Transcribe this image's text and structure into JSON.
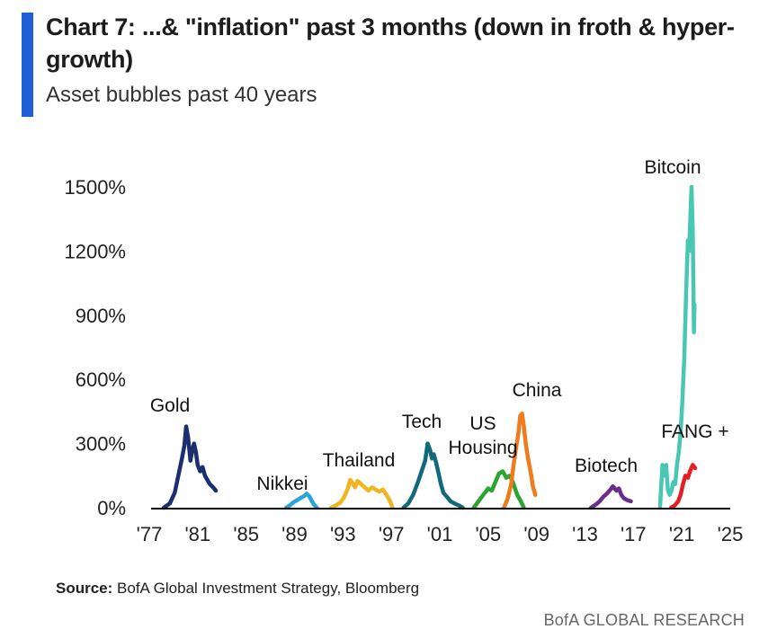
{
  "header": {
    "title": "Chart 7: ...& \"inflation\" past 3 months (down in froth & hyper-growth)",
    "subtitle": "Asset bubbles past 40 years"
  },
  "footer": {
    "source_label": "Source:",
    "source_text": "BofA Global Investment Strategy, Bloomberg",
    "brand": "BofA GLOBAL RESEARCH"
  },
  "chart_data": {
    "type": "line",
    "title": "Chart 7: ...& \"inflation\" past 3 months (down in froth & hyper-growth)",
    "subtitle": "Asset bubbles past 40 years",
    "xlabel": "",
    "ylabel": "",
    "xlim": [
      1977,
      2025
    ],
    "ylim": [
      0,
      1500
    ],
    "x_ticks": [
      {
        "value": 1977,
        "label": "'77"
      },
      {
        "value": 1981,
        "label": "'81"
      },
      {
        "value": 1985,
        "label": "'85"
      },
      {
        "value": 1989,
        "label": "'89"
      },
      {
        "value": 1993,
        "label": "'93"
      },
      {
        "value": 1997,
        "label": "'97"
      },
      {
        "value": 2001,
        "label": "'01"
      },
      {
        "value": 2005,
        "label": "'05"
      },
      {
        "value": 2009,
        "label": "'09"
      },
      {
        "value": 2013,
        "label": "'13"
      },
      {
        "value": 2017,
        "label": "'17"
      },
      {
        "value": 2021,
        "label": "'21"
      },
      {
        "value": 2025,
        "label": "'25"
      }
    ],
    "y_ticks": [
      {
        "value": 0,
        "label": "0%"
      },
      {
        "value": 300,
        "label": "300%"
      },
      {
        "value": 600,
        "label": "600%"
      },
      {
        "value": 900,
        "label": "900%"
      },
      {
        "value": 1200,
        "label": "1200%"
      },
      {
        "value": 1500,
        "label": "1500%"
      }
    ],
    "grid": false,
    "legend": "none",
    "series": [
      {
        "name": "Gold",
        "color": "#1b2f6e",
        "label_lines": [
          "Gold"
        ],
        "x": [
          1978.2,
          1978.7,
          1979.1,
          1979.4,
          1979.7,
          1979.9,
          1980.05,
          1980.2,
          1980.4,
          1980.55,
          1980.7,
          1980.85,
          1981.0,
          1981.2,
          1981.4,
          1981.6,
          1981.8,
          1982.0,
          1982.2,
          1982.5
        ],
        "y": [
          0,
          20,
          70,
          150,
          230,
          290,
          380,
          330,
          220,
          270,
          300,
          260,
          200,
          170,
          190,
          150,
          130,
          110,
          100,
          80
        ]
      },
      {
        "name": "Nikkei",
        "color": "#29a3d9",
        "label_lines": [
          "Nikkei"
        ],
        "x": [
          1988.3,
          1988.6,
          1988.9,
          1989.2,
          1989.5,
          1989.8,
          1990.0,
          1990.2,
          1990.4,
          1990.6,
          1990.85
        ],
        "y": [
          0,
          10,
          25,
          35,
          45,
          55,
          65,
          55,
          35,
          15,
          0
        ]
      },
      {
        "name": "Thailand",
        "color": "#f0b51f",
        "label_lines": [
          "Thailand"
        ],
        "x": [
          1992.0,
          1992.4,
          1992.8,
          1993.1,
          1993.4,
          1993.6,
          1993.8,
          1994.0,
          1994.2,
          1994.5,
          1994.8,
          1995.1,
          1995.4,
          1995.7,
          1996.0,
          1996.3,
          1996.6,
          1996.9,
          1997.1
        ],
        "y": [
          0,
          10,
          25,
          50,
          90,
          130,
          115,
          95,
          125,
          110,
          95,
          80,
          95,
          85,
          75,
          85,
          60,
          30,
          0
        ]
      },
      {
        "name": "Tech",
        "color": "#13697a",
        "label_lines": [
          "Tech"
        ],
        "x": [
          1998.0,
          1998.4,
          1998.8,
          1999.2,
          1999.5,
          1999.8,
          2000.0,
          2000.2,
          2000.35,
          2000.5,
          2000.7,
          2000.9,
          2001.1,
          2001.3,
          2001.6,
          2001.9,
          2002.2,
          2002.6,
          2002.9
        ],
        "y": [
          0,
          20,
          60,
          120,
          170,
          220,
          300,
          270,
          230,
          250,
          210,
          160,
          110,
          70,
          50,
          30,
          20,
          10,
          0
        ]
      },
      {
        "name": "US Housing",
        "color": "#2aa52f",
        "label_lines": [
          "US",
          "Housing"
        ],
        "x": [
          2003.8,
          2004.2,
          2004.6,
          2005.0,
          2005.3,
          2005.6,
          2005.9,
          2006.2,
          2006.5,
          2006.8,
          2007.1,
          2007.4,
          2007.7,
          2007.95
        ],
        "y": [
          0,
          30,
          60,
          90,
          80,
          120,
          160,
          170,
          140,
          150,
          110,
          60,
          30,
          0
        ]
      },
      {
        "name": "China",
        "color": "#f07b1c",
        "label_lines": [
          "China"
        ],
        "x": [
          2006.3,
          2006.6,
          2006.9,
          2007.1,
          2007.3,
          2007.5,
          2007.65,
          2007.8,
          2007.95,
          2008.1,
          2008.3,
          2008.5,
          2008.7,
          2008.9
        ],
        "y": [
          0,
          40,
          110,
          200,
          280,
          350,
          430,
          440,
          380,
          300,
          230,
          170,
          100,
          60
        ]
      },
      {
        "name": "Biotech",
        "color": "#6b2c8c",
        "label_lines": [
          "Biotech"
        ],
        "x": [
          2013.5,
          2013.9,
          2014.2,
          2014.5,
          2014.8,
          2015.1,
          2015.3,
          2015.6,
          2015.8,
          2016.0,
          2016.2,
          2016.5,
          2016.8
        ],
        "y": [
          0,
          15,
          30,
          50,
          65,
          85,
          100,
          80,
          90,
          60,
          45,
          35,
          30
        ]
      },
      {
        "name": "Bitcoin",
        "color": "#4ac7b3",
        "label_lines": [
          "Bitcoin"
        ],
        "x": [
          2019.2,
          2019.4,
          2019.55,
          2019.7,
          2019.85,
          2020.0,
          2020.15,
          2020.3,
          2020.45,
          2020.6,
          2020.75,
          2020.9,
          2021.05,
          2021.2,
          2021.35,
          2021.5,
          2021.6,
          2021.7,
          2021.8,
          2021.9,
          2022.0,
          2022.05
        ],
        "y": [
          0,
          200,
          150,
          200,
          80,
          60,
          80,
          120,
          110,
          200,
          260,
          350,
          500,
          700,
          1000,
          1250,
          1200,
          1350,
          1500,
          1300,
          820,
          950
        ]
      },
      {
        "name": "FANG +",
        "color": "#e51d25",
        "label_lines": [
          "FANG +"
        ],
        "x": [
          2020.1,
          2020.4,
          2020.7,
          2020.9,
          2021.1,
          2021.3,
          2021.5,
          2021.7,
          2021.9,
          2022.1
        ],
        "y": [
          0,
          10,
          30,
          60,
          110,
          150,
          140,
          175,
          200,
          185
        ]
      }
    ]
  }
}
